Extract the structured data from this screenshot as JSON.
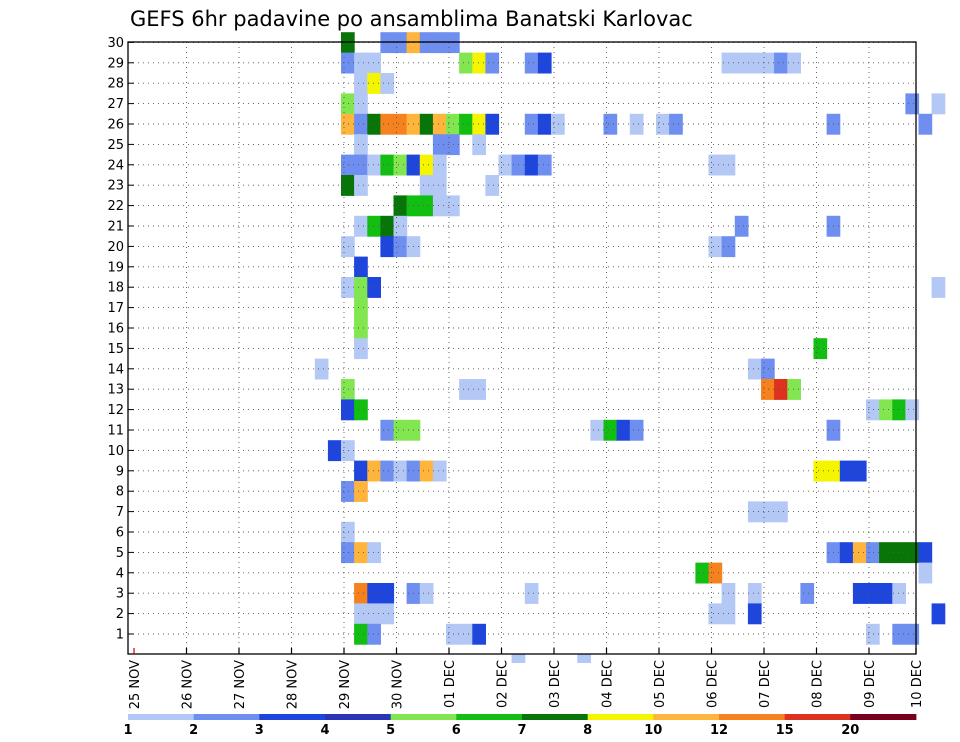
{
  "chart_data": {
    "type": "heatmap",
    "title": "GEFS 6hr padavine po ansamblima Banatski Karlovac",
    "x_tick_labels": [
      "25 NOV",
      "26 NOV",
      "27 NOV",
      "28 NOV",
      "29 NOV",
      "30 NOV",
      "01 DEC",
      "02 DEC",
      "03 DEC",
      "04 DEC",
      "05 DEC",
      "06 DEC",
      "07 DEC",
      "08 DEC",
      "09 DEC",
      "10 DEC"
    ],
    "y_tick_labels": [
      "1",
      "2",
      "3",
      "4",
      "5",
      "6",
      "7",
      "8",
      "9",
      "10",
      "11",
      "12",
      "13",
      "14",
      "15",
      "16",
      "17",
      "18",
      "19",
      "20",
      "21",
      "22",
      "23",
      "24",
      "25",
      "26",
      "27",
      "28",
      "29",
      "30"
    ],
    "x_unit": "6-hour step (4 steps per day)",
    "y_unit": "ensemble member",
    "grid": true,
    "colorbar": {
      "levels": [
        "1",
        "2",
        "3",
        "4",
        "5",
        "6",
        "7",
        "8",
        "10",
        "12",
        "15",
        "20"
      ],
      "colors": [
        "#b4c8f5",
        "#6e8ef0",
        "#1e46dc",
        "#2a34b8",
        "#82e650",
        "#12be12",
        "#087508",
        "#f5f500",
        "#ffb43c",
        "#f5821e",
        "#dc321e",
        "#78001e"
      ]
    },
    "cells": [
      [
        30,
        16,
        6
      ],
      [
        30,
        19,
        1
      ],
      [
        30,
        20,
        1
      ],
      [
        30,
        21,
        8
      ],
      [
        30,
        22,
        1
      ],
      [
        30,
        23,
        1
      ],
      [
        30,
        24,
        1
      ],
      [
        29,
        16,
        1
      ],
      [
        29,
        17,
        0
      ],
      [
        29,
        18,
        0
      ],
      [
        29,
        25,
        4
      ],
      [
        29,
        26,
        7
      ],
      [
        29,
        27,
        1
      ],
      [
        29,
        30,
        1
      ],
      [
        29,
        31,
        2
      ],
      [
        29,
        45,
        0
      ],
      [
        29,
        46,
        0
      ],
      [
        29,
        47,
        0
      ],
      [
        29,
        48,
        0
      ],
      [
        29,
        49,
        1
      ],
      [
        29,
        50,
        0
      ],
      [
        28,
        17,
        0
      ],
      [
        28,
        18,
        7
      ],
      [
        28,
        19,
        0
      ],
      [
        27,
        16,
        4
      ],
      [
        27,
        17,
        0
      ],
      [
        27,
        59,
        1
      ],
      [
        27,
        61,
        0
      ],
      [
        26,
        16,
        8
      ],
      [
        26,
        17,
        1
      ],
      [
        26,
        18,
        6
      ],
      [
        26,
        19,
        9
      ],
      [
        26,
        20,
        9
      ],
      [
        26,
        21,
        8
      ],
      [
        26,
        22,
        6
      ],
      [
        26,
        23,
        8
      ],
      [
        26,
        24,
        4
      ],
      [
        26,
        25,
        5
      ],
      [
        26,
        26,
        7
      ],
      [
        26,
        27,
        2
      ],
      [
        26,
        30,
        1
      ],
      [
        26,
        31,
        2
      ],
      [
        26,
        32,
        0
      ],
      [
        26,
        36,
        1
      ],
      [
        26,
        38,
        0
      ],
      [
        26,
        40,
        0
      ],
      [
        26,
        41,
        1
      ],
      [
        26,
        53,
        1
      ],
      [
        26,
        60,
        1
      ],
      [
        25,
        17,
        0
      ],
      [
        25,
        23,
        1
      ],
      [
        25,
        24,
        1
      ],
      [
        25,
        26,
        0
      ],
      [
        24,
        16,
        1
      ],
      [
        24,
        17,
        1
      ],
      [
        24,
        18,
        0
      ],
      [
        24,
        19,
        5
      ],
      [
        24,
        20,
        4
      ],
      [
        24,
        21,
        2
      ],
      [
        24,
        22,
        7
      ],
      [
        24,
        23,
        0
      ],
      [
        24,
        28,
        0
      ],
      [
        24,
        29,
        1
      ],
      [
        24,
        30,
        2
      ],
      [
        24,
        31,
        1
      ],
      [
        24,
        44,
        0
      ],
      [
        24,
        45,
        0
      ],
      [
        23,
        16,
        6
      ],
      [
        23,
        17,
        0
      ],
      [
        23,
        22,
        0
      ],
      [
        23,
        23,
        0
      ],
      [
        23,
        27,
        0
      ],
      [
        22,
        20,
        6
      ],
      [
        22,
        21,
        5
      ],
      [
        22,
        22,
        5
      ],
      [
        22,
        23,
        0
      ],
      [
        22,
        24,
        0
      ],
      [
        21,
        17,
        0
      ],
      [
        21,
        18,
        5
      ],
      [
        21,
        19,
        6
      ],
      [
        21,
        20,
        0
      ],
      [
        21,
        46,
        1
      ],
      [
        21,
        53,
        1
      ],
      [
        20,
        16,
        0
      ],
      [
        20,
        19,
        2
      ],
      [
        20,
        20,
        1
      ],
      [
        20,
        21,
        0
      ],
      [
        20,
        44,
        0
      ],
      [
        20,
        45,
        1
      ],
      [
        19,
        17,
        2
      ],
      [
        18,
        16,
        0
      ],
      [
        18,
        17,
        4
      ],
      [
        18,
        18,
        2
      ],
      [
        18,
        61,
        0
      ],
      [
        17,
        17,
        4
      ],
      [
        16,
        17,
        4
      ],
      [
        15,
        17,
        0
      ],
      [
        15,
        52,
        5
      ],
      [
        14,
        14,
        0
      ],
      [
        14,
        47,
        0
      ],
      [
        14,
        48,
        1
      ],
      [
        13,
        16,
        4
      ],
      [
        13,
        25,
        0
      ],
      [
        13,
        26,
        0
      ],
      [
        13,
        48,
        9
      ],
      [
        13,
        49,
        10
      ],
      [
        13,
        50,
        4
      ],
      [
        12,
        16,
        2
      ],
      [
        12,
        17,
        5
      ],
      [
        12,
        56,
        0
      ],
      [
        12,
        57,
        4
      ],
      [
        12,
        58,
        5
      ],
      [
        12,
        59,
        0
      ],
      [
        11,
        19,
        1
      ],
      [
        11,
        20,
        4
      ],
      [
        11,
        21,
        4
      ],
      [
        11,
        35,
        0
      ],
      [
        11,
        36,
        5
      ],
      [
        11,
        37,
        2
      ],
      [
        11,
        38,
        1
      ],
      [
        11,
        53,
        1
      ],
      [
        10,
        15,
        2
      ],
      [
        10,
        16,
        0
      ],
      [
        9,
        17,
        2
      ],
      [
        9,
        18,
        8
      ],
      [
        9,
        19,
        1
      ],
      [
        9,
        20,
        0
      ],
      [
        9,
        21,
        1
      ],
      [
        9,
        22,
        8
      ],
      [
        9,
        23,
        0
      ],
      [
        9,
        52,
        7
      ],
      [
        9,
        53,
        7
      ],
      [
        9,
        54,
        2
      ],
      [
        9,
        55,
        2
      ],
      [
        8,
        16,
        1
      ],
      [
        8,
        17,
        8
      ],
      [
        7,
        47,
        0
      ],
      [
        7,
        48,
        0
      ],
      [
        7,
        49,
        0
      ],
      [
        6,
        16,
        0
      ],
      [
        5,
        16,
        1
      ],
      [
        5,
        17,
        8
      ],
      [
        5,
        18,
        0
      ],
      [
        5,
        53,
        1
      ],
      [
        5,
        54,
        2
      ],
      [
        5,
        55,
        8
      ],
      [
        5,
        56,
        1
      ],
      [
        5,
        57,
        6
      ],
      [
        5,
        58,
        6
      ],
      [
        5,
        59,
        6
      ],
      [
        5,
        60,
        2
      ],
      [
        4,
        43,
        5
      ],
      [
        4,
        44,
        9
      ],
      [
        4,
        60,
        0
      ],
      [
        3,
        17,
        9
      ],
      [
        3,
        18,
        2
      ],
      [
        3,
        19,
        2
      ],
      [
        3,
        21,
        1
      ],
      [
        3,
        22,
        0
      ],
      [
        3,
        30,
        0
      ],
      [
        3,
        45,
        0
      ],
      [
        3,
        47,
        0
      ],
      [
        3,
        51,
        1
      ],
      [
        3,
        55,
        2
      ],
      [
        3,
        56,
        2
      ],
      [
        3,
        57,
        2
      ],
      [
        3,
        58,
        0
      ],
      [
        2,
        17,
        0
      ],
      [
        2,
        18,
        0
      ],
      [
        2,
        19,
        0
      ],
      [
        2,
        44,
        0
      ],
      [
        2,
        45,
        0
      ],
      [
        2,
        47,
        2
      ],
      [
        2,
        61,
        2
      ],
      [
        1,
        17,
        5
      ],
      [
        1,
        18,
        1
      ],
      [
        1,
        24,
        0
      ],
      [
        1,
        25,
        0
      ],
      [
        1,
        26,
        2
      ],
      [
        1,
        56,
        0
      ],
      [
        1,
        58,
        1
      ],
      [
        1,
        59,
        1
      ]
    ],
    "below_cells": [
      [
        29,
        0
      ],
      [
        34,
        0
      ]
    ]
  }
}
